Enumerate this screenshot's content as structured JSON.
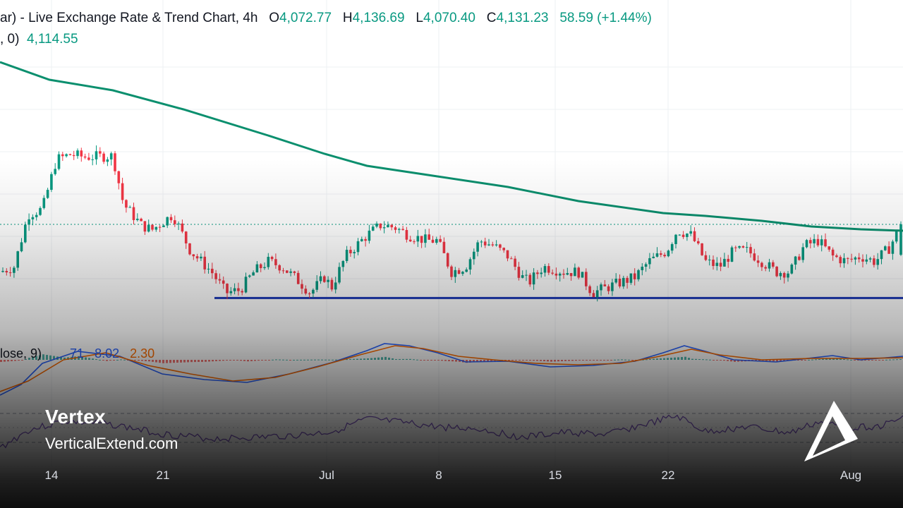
{
  "header": {
    "title": "ar) - Live Exchange Rate & Trend Chart, 4h",
    "ohlc": {
      "open_label": "O",
      "open": "4,072.77",
      "high_label": "H",
      "high": "4,136.69",
      "low_label": "L",
      "low": "4,070.40",
      "close_label": "C",
      "close": "4,131.23",
      "change": "58.59 (+1.44%)"
    }
  },
  "moving_average": {
    "label": ", 0)",
    "value": "4,114.55"
  },
  "macd": {
    "label": "lose, 9)",
    "v1": "71",
    "v2": "8.02",
    "v3": "2.30"
  },
  "x_axis": {
    "ticks": [
      "14",
      "21",
      "Jul",
      "8",
      "15",
      "22",
      "Aug"
    ]
  },
  "brand": {
    "name": "Vertex",
    "url": "VerticalExtend.com",
    "logo_icon": "triangle-arrow-logo-icon"
  },
  "colors": {
    "up": "#089981",
    "down": "#f23645",
    "ma": "#0b8f6e",
    "support": "#1a37b5",
    "macd": "#2962ff",
    "signal": "#ff6d00",
    "rsi": "#7e57c2"
  },
  "chart_data": {
    "type": "candlestick",
    "interval": "4h",
    "x": [
      "14",
      "21",
      "Jul",
      "8",
      "15",
      "22",
      "Aug"
    ],
    "last_bar": {
      "open": 4072.77,
      "high": 4136.69,
      "low": 4070.4,
      "close": 4131.23
    },
    "moving_average_last": 4114.55,
    "price_levels_approx": {
      "recent_high": 4310,
      "support": 3990,
      "range_low": 3980
    },
    "close_path_approx": [
      {
        "t": "start",
        "v": 4040
      },
      {
        "t": "mid-13",
        "v": 4150
      },
      {
        "t": "14",
        "v": 4260
      },
      {
        "t": "18",
        "v": 4260
      },
      {
        "t": "21",
        "v": 4130
      },
      {
        "t": "25",
        "v": 4000
      },
      {
        "t": "Jul",
        "v": 4000
      },
      {
        "t": "4",
        "v": 4110
      },
      {
        "t": "8",
        "v": 4070
      },
      {
        "t": "15",
        "v": 4010
      },
      {
        "t": "18",
        "v": 4000
      },
      {
        "t": "22",
        "v": 4100
      },
      {
        "t": "26",
        "v": 4040
      },
      {
        "t": "Aug",
        "v": 4060
      },
      {
        "t": "end",
        "v": 4131
      }
    ],
    "series": [
      {
        "name": "Price",
        "kind": "candles"
      },
      {
        "name": "MA",
        "kind": "line"
      },
      {
        "name": "MACD",
        "kind": "line"
      },
      {
        "name": "Signal",
        "kind": "line"
      },
      {
        "name": "RSI",
        "kind": "line"
      }
    ]
  }
}
